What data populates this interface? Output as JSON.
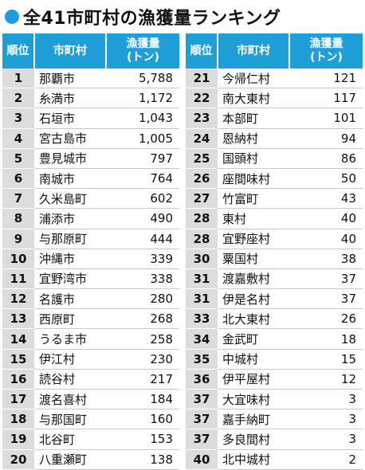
{
  "title": "全41市町村の漁獲量ランキング",
  "headers": {
    "rank": "順位",
    "name": "市町村",
    "catch_line1": "漁獲量",
    "catch_line2": "(トン)"
  },
  "colors": {
    "header_bg": "#1e9fd8",
    "rank_bg": "#dcdcdc",
    "dot": "#1aa0dc"
  },
  "left_rows": [
    {
      "rank": "1",
      "name": "那覇市",
      "value": "5,788"
    },
    {
      "rank": "2",
      "name": "糸満市",
      "value": "1,172"
    },
    {
      "rank": "3",
      "name": "石垣市",
      "value": "1,043"
    },
    {
      "rank": "4",
      "name": "宮古島市",
      "value": "1,005"
    },
    {
      "rank": "5",
      "name": "豊見城市",
      "value": "797"
    },
    {
      "rank": "6",
      "name": "南城市",
      "value": "764"
    },
    {
      "rank": "7",
      "name": "久米島町",
      "value": "602"
    },
    {
      "rank": "8",
      "name": "浦添市",
      "value": "490"
    },
    {
      "rank": "9",
      "name": "与那原町",
      "value": "444"
    },
    {
      "rank": "10",
      "name": "沖縄市",
      "value": "339"
    },
    {
      "rank": "11",
      "name": "宜野湾市",
      "value": "338"
    },
    {
      "rank": "12",
      "name": "名護市",
      "value": "280"
    },
    {
      "rank": "13",
      "name": "西原町",
      "value": "268"
    },
    {
      "rank": "14",
      "name": "うるま市",
      "value": "258"
    },
    {
      "rank": "15",
      "name": "伊江村",
      "value": "230"
    },
    {
      "rank": "16",
      "name": "読谷村",
      "value": "217"
    },
    {
      "rank": "17",
      "name": "渡名喜村",
      "value": "184"
    },
    {
      "rank": "18",
      "name": "与那国町",
      "value": "160"
    },
    {
      "rank": "19",
      "name": "北谷町",
      "value": "153"
    },
    {
      "rank": "20",
      "name": "八重瀬町",
      "value": "138"
    }
  ],
  "right_rows": [
    {
      "rank": "21",
      "name": "今帰仁村",
      "value": "121"
    },
    {
      "rank": "22",
      "name": "南大東村",
      "value": "117"
    },
    {
      "rank": "23",
      "name": "本部町",
      "value": "101"
    },
    {
      "rank": "24",
      "name": "恩納村",
      "value": "94"
    },
    {
      "rank": "25",
      "name": "国頭村",
      "value": "86"
    },
    {
      "rank": "26",
      "name": "座間味村",
      "value": "50"
    },
    {
      "rank": "27",
      "name": "竹富町",
      "value": "43"
    },
    {
      "rank": "28",
      "name": "東村",
      "value": "40"
    },
    {
      "rank": "28",
      "name": "宜野座村",
      "value": "40"
    },
    {
      "rank": "30",
      "name": "粟国村",
      "value": "38"
    },
    {
      "rank": "31",
      "name": "渡嘉敷村",
      "value": "37"
    },
    {
      "rank": "31",
      "name": "伊是名村",
      "value": "37"
    },
    {
      "rank": "33",
      "name": "北大東村",
      "value": "26"
    },
    {
      "rank": "34",
      "name": "金武町",
      "value": "18"
    },
    {
      "rank": "35",
      "name": "中城村",
      "value": "15"
    },
    {
      "rank": "36",
      "name": "伊平屋村",
      "value": "12"
    },
    {
      "rank": "37",
      "name": "大宜味村",
      "value": "3"
    },
    {
      "rank": "37",
      "name": "嘉手納町",
      "value": "3"
    },
    {
      "rank": "37",
      "name": "多良間村",
      "value": "3"
    },
    {
      "rank": "40",
      "name": "北中城村",
      "value": "2"
    }
  ]
}
